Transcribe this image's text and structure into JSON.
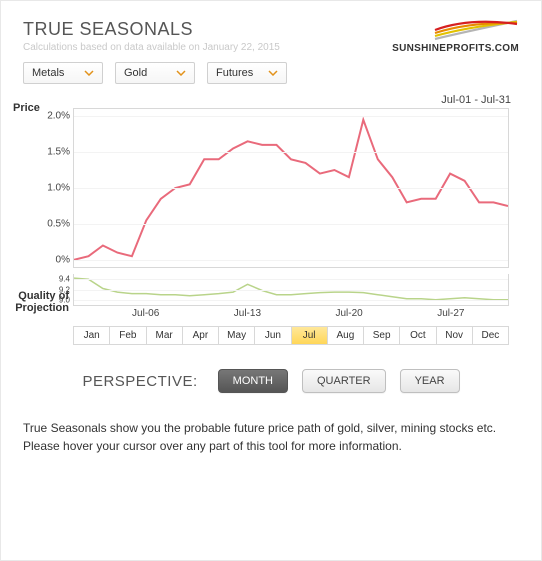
{
  "header": {
    "title": "TRUE SEASONALS",
    "subtitle": "Calculations based on data available on January 22, 2015",
    "logo_text": "SUNSHINEPROFITS.COM",
    "logo_colors": [
      "#b5b5b5",
      "#e2c200",
      "#e88a00",
      "#d62020"
    ]
  },
  "dropdowns": {
    "items": [
      {
        "label": "Metals"
      },
      {
        "label": "Gold"
      },
      {
        "label": "Futures"
      }
    ],
    "chev_color": "#e2921b"
  },
  "date_range": "Jul-01 - Jul-31",
  "price_chart": {
    "ylabel": "Price",
    "type": "line",
    "line_color": "#e96a7b",
    "line_width": 2,
    "background_color": "#ffffff",
    "grid_color": "#f3f3f3",
    "border_color": "#d8d8d8",
    "ylim": [
      -0.1,
      2.1
    ],
    "yticks": [
      0,
      0.5,
      1.0,
      1.5,
      2.0
    ],
    "ytick_labels": [
      "0%",
      "0.5%",
      "1.0%",
      "1.5%",
      "2.0%"
    ],
    "x": [
      1,
      2,
      3,
      4,
      5,
      6,
      7,
      8,
      9,
      10,
      11,
      12,
      13,
      14,
      15,
      16,
      17,
      18,
      19,
      20,
      21,
      22,
      23,
      24,
      25,
      26,
      27,
      28,
      29,
      30,
      31
    ],
    "y": [
      0.0,
      0.05,
      0.2,
      0.1,
      0.05,
      0.55,
      0.85,
      1.0,
      1.05,
      1.4,
      1.4,
      1.55,
      1.65,
      1.6,
      1.6,
      1.4,
      1.35,
      1.2,
      1.25,
      1.15,
      1.95,
      1.4,
      1.15,
      0.8,
      0.85,
      0.85,
      1.2,
      1.1,
      0.8,
      0.8,
      0.75
    ],
    "xaxis_ticks": [
      6,
      13,
      20,
      27
    ],
    "xaxis_labels": [
      "Jul-06",
      "Jul-13",
      "Jul-20",
      "Jul-27"
    ]
  },
  "qop_chart": {
    "ylabel": "Quality of Projection",
    "type": "line",
    "line_color": "#b9d48a",
    "line_width": 1.5,
    "ylim": [
      8.9,
      9.5
    ],
    "yticks": [
      9.0,
      9.2,
      9.4
    ],
    "ytick_labels": [
      "9.0",
      "9.2",
      "9.4"
    ],
    "x": [
      1,
      2,
      3,
      4,
      5,
      6,
      7,
      8,
      9,
      10,
      11,
      12,
      13,
      14,
      15,
      16,
      17,
      18,
      19,
      20,
      21,
      22,
      23,
      24,
      25,
      26,
      27,
      28,
      29,
      30,
      31
    ],
    "y": [
      9.42,
      9.4,
      9.22,
      9.15,
      9.12,
      9.12,
      9.1,
      9.1,
      9.08,
      9.1,
      9.12,
      9.15,
      9.3,
      9.18,
      9.1,
      9.1,
      9.12,
      9.14,
      9.15,
      9.15,
      9.14,
      9.1,
      9.06,
      9.02,
      9.02,
      9.0,
      9.02,
      9.04,
      9.02,
      9.0,
      9.0
    ]
  },
  "months": {
    "labels": [
      "Jan",
      "Feb",
      "Mar",
      "Apr",
      "May",
      "Jun",
      "Jul",
      "Aug",
      "Sep",
      "Oct",
      "Nov",
      "Dec"
    ],
    "active_index": 6,
    "active_bg": "#ffd758"
  },
  "perspective": {
    "label": "PERSPECTIVE:",
    "buttons": [
      "MONTH",
      "QUARTER",
      "YEAR"
    ],
    "active_index": 0
  },
  "footer": "True Seasonals show you the probable future price path of gold, silver, mining stocks etc. Please hover your cursor over any part of this tool for more information."
}
